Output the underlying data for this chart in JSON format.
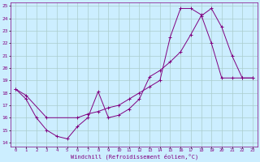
{
  "xlabel": "Windchill (Refroidissement éolien,°C)",
  "xlim": [
    -0.5,
    23.5
  ],
  "ylim": [
    13.7,
    25.3
  ],
  "yticks": [
    14,
    15,
    16,
    17,
    18,
    19,
    20,
    21,
    22,
    23,
    24,
    25
  ],
  "xticks": [
    0,
    1,
    2,
    3,
    4,
    5,
    6,
    7,
    8,
    9,
    10,
    11,
    12,
    13,
    14,
    15,
    16,
    17,
    18,
    19,
    20,
    21,
    22,
    23
  ],
  "line_color": "#800080",
  "bg_color": "#cceeff",
  "grid_color": "#aacccc",
  "line1_x": [
    0,
    1,
    2,
    3,
    4,
    5,
    6,
    7,
    8,
    9,
    10,
    11,
    12,
    13,
    14,
    15,
    16,
    17,
    18,
    19,
    20,
    21,
    22,
    23
  ],
  "line1_y": [
    18.3,
    17.5,
    16.0,
    15.0,
    14.5,
    14.3,
    15.3,
    16.0,
    18.1,
    16.0,
    16.2,
    16.7,
    17.5,
    19.3,
    19.8,
    20.5,
    21.3,
    22.7,
    24.2,
    24.8,
    23.3,
    21.0,
    19.2,
    19.2
  ],
  "line2_x": [
    0,
    1,
    3,
    6,
    7,
    8,
    9,
    10,
    11,
    12,
    13,
    14,
    15,
    16,
    17,
    18,
    19,
    20,
    21,
    22,
    23
  ],
  "line2_y": [
    18.3,
    17.8,
    16.0,
    16.0,
    16.3,
    16.5,
    16.8,
    17.0,
    17.5,
    18.0,
    18.5,
    19.0,
    22.5,
    24.8,
    24.8,
    24.3,
    22.0,
    19.2,
    19.2,
    19.2,
    19.2
  ]
}
